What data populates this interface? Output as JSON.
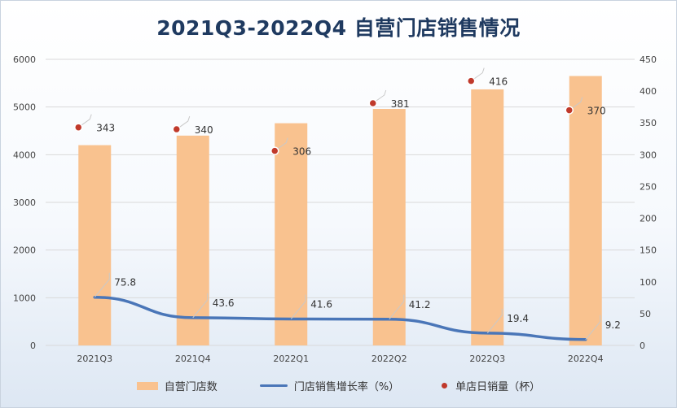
{
  "chart_data": {
    "type": "bar",
    "title": "2021Q3-2022Q4 自营门店销售情况",
    "categories": [
      "2021Q3",
      "2021Q4",
      "2022Q1",
      "2022Q2",
      "2022Q3",
      "2022Q4"
    ],
    "series": [
      {
        "name": "自营门店数",
        "type": "bar",
        "axis": "left",
        "values": [
          4200,
          4400,
          4660,
          4960,
          5370,
          5650
        ],
        "color": "#f9c28f"
      },
      {
        "name": "门店销售增长率（%）",
        "type": "line",
        "axis": "right",
        "values": [
          75.8,
          43.6,
          41.6,
          41.2,
          19.4,
          9.2
        ],
        "color": "#4a76b8"
      },
      {
        "name": "单店日销量（杯）",
        "type": "scatter",
        "axis": "right",
        "values": [
          343,
          340,
          306,
          381,
          416,
          370
        ],
        "color": "#c0392b"
      }
    ],
    "ylim_left": [
      0,
      6000
    ],
    "yticks_left": [
      "0",
      "1000",
      "2000",
      "3000",
      "4000",
      "5000",
      "6000"
    ],
    "ylim_right": [
      0,
      450
    ],
    "yticks_right": [
      "0",
      "50",
      "100",
      "150",
      "200",
      "250",
      "300",
      "350",
      "400",
      "450"
    ],
    "grid": true,
    "legend_position": "bottom"
  }
}
